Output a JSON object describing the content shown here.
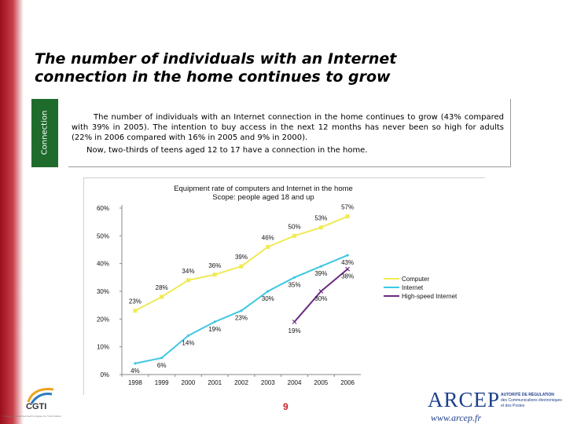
{
  "slide": {
    "title_line1": "The number of individuals with an Internet",
    "title_line2": "connection in the home continues to grow",
    "side_tab": "Connection",
    "paragraph1": "The number of individuals with an Internet connection in the home continues to grow (43% compared with 39% in 2005). The intention to buy access in the next 12 months has never been so high for adults (22% in 2006 compared with 16% in 2005 and 9% in 2000).",
    "paragraph2": "Now, two-thirds of teens aged 12 to 17 have a connection in the home.",
    "page_number": "9"
  },
  "footer": {
    "cgti_name": "CGTI",
    "cgti_sub": "Conseil général des technologies de l'information",
    "arcep_name": "ARCEP",
    "arcep_url": "www.arcep.fr",
    "arcep_authority_line1": "AUTORITÉ DE RÉGULATION",
    "arcep_authority_line2": "des Communications électroniques",
    "arcep_authority_line3": "et des Postes"
  },
  "colors": {
    "computer": "#f0ea55",
    "internet": "#3fc7e3",
    "high_speed": "#6b2b80",
    "left_bar": "#9b0d1b",
    "side_tab": "#1f6b2c",
    "page_number": "#c8202a"
  },
  "chart_data": {
    "type": "line",
    "title": "Equipment rate of computers and Internet in the home",
    "subtitle": "Scope: people aged 18 and up",
    "x": [
      "1998",
      "1999",
      "2000",
      "2001",
      "2002",
      "2003",
      "2004",
      "2005",
      "2006"
    ],
    "yticks": [
      "0%",
      "10%",
      "20%",
      "30%",
      "40%",
      "50%",
      "60%"
    ],
    "ylim": [
      0,
      60
    ],
    "grid": false,
    "legend_position": "right",
    "series": [
      {
        "name": "Computer",
        "color": "#f0ea55",
        "values": [
          23,
          28,
          34,
          36,
          39,
          46,
          50,
          53,
          57
        ],
        "labels": [
          "23%",
          "28%",
          "34%",
          "36%",
          "39%",
          "46%",
          "50%",
          "53%",
          "57%"
        ]
      },
      {
        "name": "Internet",
        "color": "#3fc7e3",
        "values": [
          4,
          6,
          14,
          19,
          23,
          30,
          35,
          39,
          43
        ],
        "labels": [
          "4%",
          "6%",
          "14%",
          "19%",
          "23%",
          "30%",
          "35%",
          "39%",
          "43%"
        ]
      },
      {
        "name": "High-speed Internet",
        "color": "#6b2b80",
        "values": [
          null,
          null,
          null,
          null,
          null,
          null,
          19,
          30,
          38
        ],
        "labels": [
          null,
          null,
          null,
          null,
          null,
          null,
          "19%",
          "30%",
          "38%"
        ]
      }
    ]
  }
}
